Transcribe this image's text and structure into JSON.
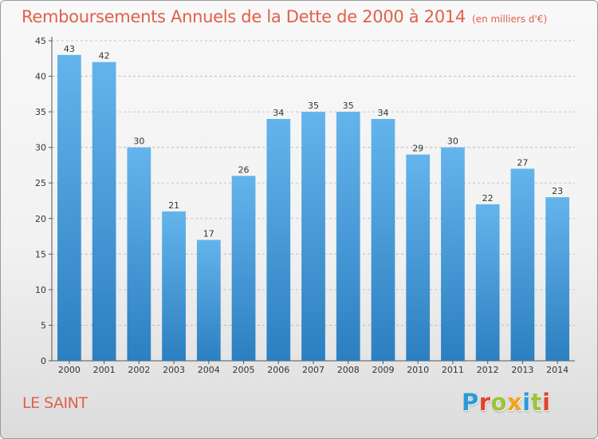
{
  "title": "Remboursements Annuels de la Dette de 2000 à 2014",
  "unit_note": "(en milliers d'€)",
  "place_name": "LE SAINT",
  "logo": {
    "text": "Proxiti",
    "letters": [
      {
        "char": "P",
        "color": "#2a9bd8"
      },
      {
        "char": "r",
        "color": "#e2452a"
      },
      {
        "char": "o",
        "color": "#9bc43a"
      },
      {
        "char": "x",
        "color": "#f2a31c"
      },
      {
        "char": "i",
        "color": "#2a9bd8"
      },
      {
        "char": "t",
        "color": "#9bc43a"
      },
      {
        "char": "i",
        "color": "#e2452a"
      }
    ]
  },
  "colors": {
    "title": "#e0604a",
    "bar_light": "#64b4ec",
    "bar_dark": "#2c7fc0",
    "grid": "#b5b5b5"
  },
  "chart_data": {
    "type": "bar",
    "title": "Remboursements Annuels de la Dette de 2000 à 2014",
    "xlabel": "",
    "ylabel": "",
    "categories": [
      "2000",
      "2001",
      "2002",
      "2003",
      "2004",
      "2005",
      "2006",
      "2007",
      "2008",
      "2009",
      "2010",
      "2011",
      "2012",
      "2013",
      "2014"
    ],
    "values": [
      43,
      42,
      30,
      21,
      17,
      26,
      34,
      35,
      35,
      34,
      29,
      30,
      22,
      27,
      23
    ],
    "ylim": [
      0,
      45
    ],
    "yticks": [
      0,
      5,
      10,
      15,
      20,
      25,
      30,
      35,
      40,
      45
    ],
    "grid": true,
    "data_labels": true
  }
}
